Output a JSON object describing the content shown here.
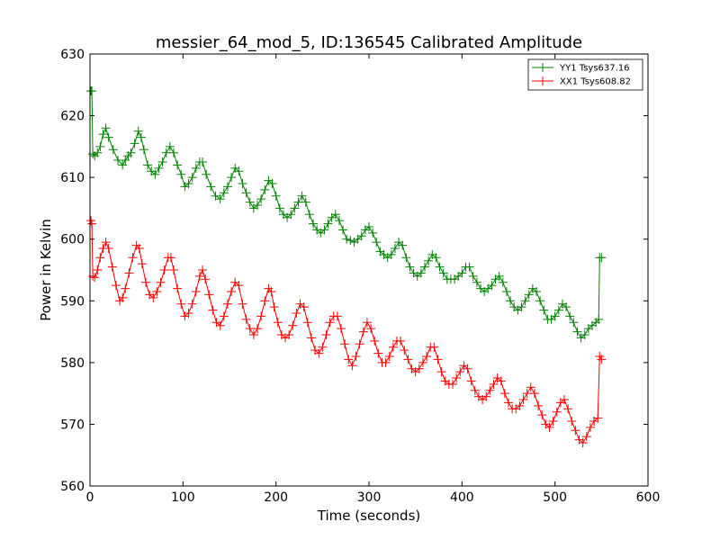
{
  "chart_data": {
    "type": "line",
    "title": "messier_64_mod_5, ID:136545 Calibrated Amplitude",
    "xlabel": "Time (seconds)",
    "ylabel": "Power in Kelvin",
    "xlim": [
      0,
      600
    ],
    "ylim": [
      560,
      630
    ],
    "xticks": [
      0,
      100,
      200,
      300,
      400,
      500,
      600
    ],
    "yticks": [
      560,
      570,
      580,
      590,
      600,
      610,
      620,
      630
    ],
    "grid": false,
    "legend_position": "top-right",
    "marker": "plus",
    "series": [
      {
        "name": "YY1 Tsys637.16",
        "color": "#008000",
        "points": [
          [
            1,
            624
          ],
          [
            2,
            624
          ],
          [
            3,
            613.8
          ],
          [
            5,
            613.5
          ],
          [
            8,
            614
          ],
          [
            11,
            615
          ],
          [
            14,
            617
          ],
          [
            17,
            618
          ],
          [
            20,
            616.5
          ],
          [
            25,
            614.5
          ],
          [
            30,
            612.8
          ],
          [
            35,
            612
          ],
          [
            38,
            612.8
          ],
          [
            41,
            613.5
          ],
          [
            44,
            614
          ],
          [
            48,
            615.5
          ],
          [
            52,
            617.5
          ],
          [
            55,
            616.5
          ],
          [
            58,
            614.5
          ],
          [
            62,
            612
          ],
          [
            66,
            611
          ],
          [
            70,
            610.5
          ],
          [
            74,
            611.5
          ],
          [
            78,
            612.5
          ],
          [
            82,
            614
          ],
          [
            86,
            615
          ],
          [
            90,
            614
          ],
          [
            94,
            612
          ],
          [
            98,
            610.5
          ],
          [
            102,
            608.5
          ],
          [
            106,
            609
          ],
          [
            110,
            610
          ],
          [
            114,
            611.5
          ],
          [
            118,
            612.5
          ],
          [
            121,
            612.5
          ],
          [
            125,
            610.5
          ],
          [
            130,
            608.5
          ],
          [
            135,
            607
          ],
          [
            140,
            606.5
          ],
          [
            144,
            607.5
          ],
          [
            148,
            608.5
          ],
          [
            152,
            610
          ],
          [
            156,
            611.5
          ],
          [
            160,
            611
          ],
          [
            164,
            609
          ],
          [
            168,
            607.5
          ],
          [
            172,
            606
          ],
          [
            176,
            605
          ],
          [
            180,
            605.5
          ],
          [
            184,
            606.5
          ],
          [
            188,
            608
          ],
          [
            192,
            609.5
          ],
          [
            196,
            609
          ],
          [
            200,
            607
          ],
          [
            204,
            605
          ],
          [
            208,
            604
          ],
          [
            212,
            603.5
          ],
          [
            216,
            604
          ],
          [
            220,
            605
          ],
          [
            224,
            606
          ],
          [
            228,
            607
          ],
          [
            232,
            606
          ],
          [
            236,
            604
          ],
          [
            240,
            602.5
          ],
          [
            244,
            601.5
          ],
          [
            248,
            601
          ],
          [
            252,
            601.5
          ],
          [
            256,
            602.5
          ],
          [
            260,
            603.5
          ],
          [
            264,
            604
          ],
          [
            268,
            603
          ],
          [
            272,
            601.5
          ],
          [
            276,
            600
          ],
          [
            280,
            599.8
          ],
          [
            284,
            599.5
          ],
          [
            288,
            600
          ],
          [
            292,
            600.5
          ],
          [
            296,
            601.5
          ],
          [
            300,
            602
          ],
          [
            304,
            601
          ],
          [
            308,
            599.5
          ],
          [
            312,
            598
          ],
          [
            316,
            597.5
          ],
          [
            320,
            597
          ],
          [
            324,
            597.5
          ],
          [
            328,
            598.5
          ],
          [
            332,
            599.5
          ],
          [
            336,
            599
          ],
          [
            340,
            597
          ],
          [
            344,
            595.5
          ],
          [
            348,
            594.5
          ],
          [
            352,
            594
          ],
          [
            356,
            594.5
          ],
          [
            360,
            595.5
          ],
          [
            364,
            596.5
          ],
          [
            368,
            597.5
          ],
          [
            372,
            597
          ],
          [
            376,
            595.5
          ],
          [
            380,
            594.5
          ],
          [
            384,
            593.5
          ],
          [
            388,
            593.5
          ],
          [
            392,
            593.5
          ],
          [
            396,
            594
          ],
          [
            400,
            594.5
          ],
          [
            404,
            595.5
          ],
          [
            408,
            595.5
          ],
          [
            412,
            594
          ],
          [
            416,
            593
          ],
          [
            420,
            592
          ],
          [
            424,
            591.5
          ],
          [
            428,
            592
          ],
          [
            432,
            592.5
          ],
          [
            436,
            593.5
          ],
          [
            440,
            594
          ],
          [
            444,
            593
          ],
          [
            448,
            591.5
          ],
          [
            452,
            590
          ],
          [
            456,
            589
          ],
          [
            460,
            588.5
          ],
          [
            464,
            589
          ],
          [
            468,
            590
          ],
          [
            472,
            591
          ],
          [
            476,
            592
          ],
          [
            480,
            591.5
          ],
          [
            484,
            590
          ],
          [
            488,
            588.5
          ],
          [
            492,
            587
          ],
          [
            496,
            587
          ],
          [
            500,
            587.5
          ],
          [
            504,
            588.5
          ],
          [
            508,
            589.5
          ],
          [
            512,
            589
          ],
          [
            516,
            587.5
          ],
          [
            520,
            586.5
          ],
          [
            524,
            585
          ],
          [
            528,
            584
          ],
          [
            532,
            584.5
          ],
          [
            536,
            585.5
          ],
          [
            540,
            586
          ],
          [
            544,
            586.5
          ],
          [
            547,
            587
          ],
          [
            548,
            597
          ],
          [
            550,
            597
          ]
        ]
      },
      {
        "name": "XX1 Tsys608.82",
        "color": "#ff0000",
        "points": [
          [
            1,
            603
          ],
          [
            2,
            602.5
          ],
          [
            3,
            594
          ],
          [
            5,
            593.8
          ],
          [
            8,
            595
          ],
          [
            11,
            597
          ],
          [
            14,
            598.5
          ],
          [
            17,
            599.5
          ],
          [
            20,
            598.5
          ],
          [
            24,
            595.5
          ],
          [
            28,
            592.5
          ],
          [
            32,
            590
          ],
          [
            35,
            590.5
          ],
          [
            38,
            592
          ],
          [
            42,
            594.5
          ],
          [
            46,
            597
          ],
          [
            50,
            599
          ],
          [
            53,
            598.5
          ],
          [
            56,
            596
          ],
          [
            60,
            593
          ],
          [
            64,
            591
          ],
          [
            68,
            590.5
          ],
          [
            72,
            591.5
          ],
          [
            76,
            593
          ],
          [
            80,
            595
          ],
          [
            84,
            597
          ],
          [
            87,
            597
          ],
          [
            90,
            595
          ],
          [
            94,
            592
          ],
          [
            98,
            589.5
          ],
          [
            102,
            587.5
          ],
          [
            106,
            588
          ],
          [
            110,
            589.5
          ],
          [
            114,
            591.5
          ],
          [
            118,
            594
          ],
          [
            121,
            595
          ],
          [
            124,
            593.5
          ],
          [
            128,
            591
          ],
          [
            132,
            588.5
          ],
          [
            136,
            586.5
          ],
          [
            140,
            586
          ],
          [
            144,
            587.5
          ],
          [
            148,
            589.5
          ],
          [
            152,
            591.5
          ],
          [
            156,
            593
          ],
          [
            160,
            592.5
          ],
          [
            164,
            589.5
          ],
          [
            168,
            587
          ],
          [
            172,
            585.5
          ],
          [
            176,
            584.5
          ],
          [
            180,
            585.5
          ],
          [
            184,
            587.5
          ],
          [
            188,
            590
          ],
          [
            192,
            592
          ],
          [
            195,
            591.5
          ],
          [
            198,
            589
          ],
          [
            202,
            586.5
          ],
          [
            206,
            584.5
          ],
          [
            210,
            584
          ],
          [
            214,
            584.5
          ],
          [
            218,
            586
          ],
          [
            222,
            588
          ],
          [
            226,
            589.5
          ],
          [
            230,
            589
          ],
          [
            234,
            586.5
          ],
          [
            238,
            584
          ],
          [
            242,
            582
          ],
          [
            246,
            581.5
          ],
          [
            250,
            582.5
          ],
          [
            254,
            584.5
          ],
          [
            258,
            586.5
          ],
          [
            262,
            587.5
          ],
          [
            266,
            587.5
          ],
          [
            270,
            585.5
          ],
          [
            274,
            583
          ],
          [
            278,
            580.5
          ],
          [
            282,
            579.5
          ],
          [
            286,
            581
          ],
          [
            290,
            583
          ],
          [
            294,
            585
          ],
          [
            298,
            586.5
          ],
          [
            302,
            585.5
          ],
          [
            306,
            583.5
          ],
          [
            310,
            581.5
          ],
          [
            314,
            580
          ],
          [
            318,
            580
          ],
          [
            322,
            581
          ],
          [
            326,
            582.5
          ],
          [
            330,
            583.5
          ],
          [
            334,
            583.5
          ],
          [
            338,
            582
          ],
          [
            342,
            580.5
          ],
          [
            346,
            579
          ],
          [
            350,
            578.5
          ],
          [
            354,
            579
          ],
          [
            358,
            580
          ],
          [
            362,
            581
          ],
          [
            366,
            582.5
          ],
          [
            370,
            582.5
          ],
          [
            374,
            580.5
          ],
          [
            378,
            578.5
          ],
          [
            382,
            577
          ],
          [
            386,
            576.5
          ],
          [
            390,
            576.5
          ],
          [
            394,
            577.5
          ],
          [
            398,
            578.5
          ],
          [
            402,
            579.5
          ],
          [
            406,
            579
          ],
          [
            410,
            577
          ],
          [
            414,
            575.5
          ],
          [
            418,
            574.5
          ],
          [
            422,
            574
          ],
          [
            426,
            574.5
          ],
          [
            430,
            575.5
          ],
          [
            434,
            576.5
          ],
          [
            438,
            577.5
          ],
          [
            442,
            577
          ],
          [
            446,
            575
          ],
          [
            450,
            573.5
          ],
          [
            454,
            572.5
          ],
          [
            458,
            572.5
          ],
          [
            462,
            573
          ],
          [
            466,
            574
          ],
          [
            470,
            575
          ],
          [
            474,
            576
          ],
          [
            478,
            575
          ],
          [
            482,
            573
          ],
          [
            486,
            571.5
          ],
          [
            490,
            570
          ],
          [
            494,
            569.5
          ],
          [
            498,
            570.5
          ],
          [
            502,
            572
          ],
          [
            506,
            573.5
          ],
          [
            510,
            574
          ],
          [
            514,
            572.5
          ],
          [
            518,
            570.5
          ],
          [
            522,
            569
          ],
          [
            526,
            567.5
          ],
          [
            530,
            567
          ],
          [
            534,
            568
          ],
          [
            538,
            569.5
          ],
          [
            542,
            570.5
          ],
          [
            546,
            571
          ],
          [
            548,
            581
          ],
          [
            550,
            580.5
          ]
        ]
      }
    ]
  }
}
